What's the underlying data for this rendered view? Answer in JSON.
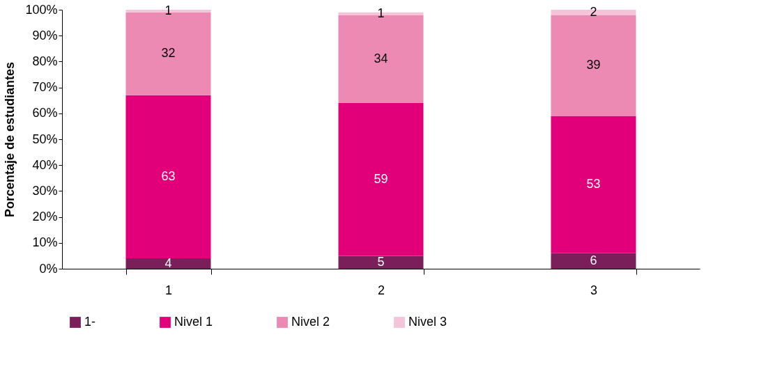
{
  "chart_data": {
    "type": "bar",
    "stacked": true,
    "ylabel": "Porcentaje de estudiantes",
    "categories": [
      "1",
      "2",
      "3"
    ],
    "series": [
      {
        "name": "1-",
        "color": "#7b1f5a",
        "values": [
          4,
          5,
          6
        ]
      },
      {
        "name": "Nivel 1",
        "color": "#e2007a",
        "values": [
          63,
          59,
          53
        ]
      },
      {
        "name": "Nivel 2",
        "color": "#ec8ab4",
        "values": [
          32,
          34,
          39
        ]
      },
      {
        "name": "Nivel 3",
        "color": "#f5c4d9",
        "values": [
          1,
          1,
          2
        ]
      }
    ],
    "ylim": [
      0,
      100
    ],
    "yticks": [
      {
        "value": 0,
        "label": "0%"
      },
      {
        "value": 10,
        "label": "10%"
      },
      {
        "value": 20,
        "label": "20%"
      },
      {
        "value": 30,
        "label": "30%"
      },
      {
        "value": 40,
        "label": "40%"
      },
      {
        "value": 50,
        "label": "50%"
      },
      {
        "value": 60,
        "label": "60%"
      },
      {
        "value": 70,
        "label": "70%"
      },
      {
        "value": 80,
        "label": "80%"
      },
      {
        "value": 90,
        "label": "90%"
      },
      {
        "value": 100,
        "label": "100%"
      }
    ],
    "data_labels": true,
    "legend": "bottom",
    "grid": false
  }
}
